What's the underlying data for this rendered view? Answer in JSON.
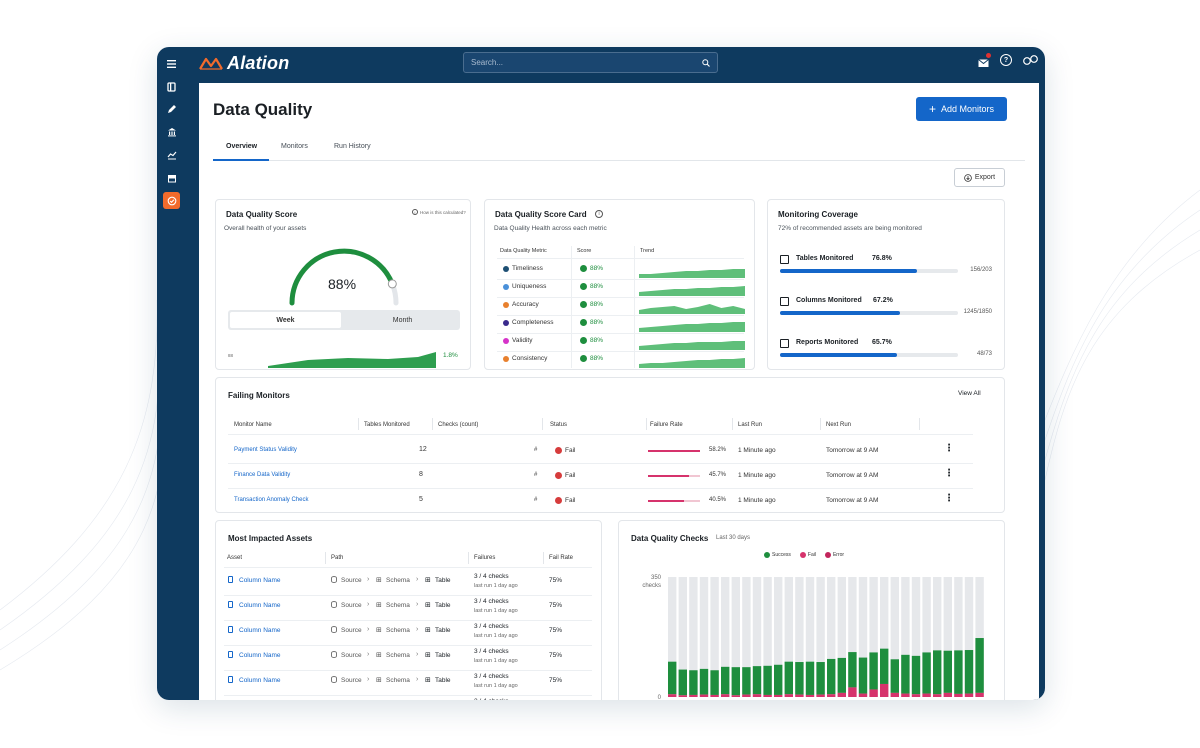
{
  "app": {
    "name": "Alation"
  },
  "search": {
    "placeholder": "Search..."
  },
  "page": {
    "title": "Data Quality",
    "add_button": "Add Monitors",
    "export_button": "Export"
  },
  "tabs": [
    {
      "label": "Overview",
      "active": true
    },
    {
      "label": "Monitors"
    },
    {
      "label": "Run History"
    }
  ],
  "score_card": {
    "title": "Data Quality Score",
    "subtitle": "Overall health of your assets",
    "help": "How is this calculated?",
    "score": "88%",
    "score_value": 0.88,
    "toggle": [
      "Week",
      "Month"
    ],
    "spark_label": "88",
    "delta": "1.8%"
  },
  "metric_card": {
    "title": "Data Quality Score Card",
    "subtitle": "Data Quality Health across each metric",
    "columns": [
      "Data Quality Metric",
      "Score",
      "Trend"
    ],
    "rows": [
      {
        "metric": "Timeliness",
        "score": "88%",
        "color": "#1d4f73"
      },
      {
        "metric": "Uniqueness",
        "score": "88%",
        "color": "#4a90d9"
      },
      {
        "metric": "Accuracy",
        "score": "88%",
        "color": "#e8802e"
      },
      {
        "metric": "Completeness",
        "score": "88%",
        "color": "#3a2a8c"
      },
      {
        "metric": "Validity",
        "score": "88%",
        "color": "#d633c9"
      },
      {
        "metric": "Consistency",
        "score": "88%",
        "color": "#e8802e"
      }
    ]
  },
  "coverage": {
    "title": "Monitoring Coverage",
    "subtitle": "72% of recommended assets are being monitored",
    "items": [
      {
        "label": "Tables Monitored",
        "pct": "76.8%",
        "value": 0.768,
        "count": "156/203",
        "icon": "table-icon"
      },
      {
        "label": "Columns Monitored",
        "pct": "67.2%",
        "value": 0.672,
        "count": "1245/1850",
        "icon": "column-icon"
      },
      {
        "label": "Reports Monitored",
        "pct": "65.7%",
        "value": 0.657,
        "count": "48/73",
        "icon": "report-icon"
      }
    ]
  },
  "failing": {
    "title": "Failing Monitors",
    "view_all": "View All",
    "columns": [
      "Monitor Name",
      "Tables Monitored",
      "Checks (count)",
      "Status",
      "Failure Rate",
      "Last Run",
      "Next Run"
    ],
    "rows": [
      {
        "name": "Payment Status Validity",
        "tables": "12",
        "checks": "#",
        "status": "Fail",
        "rate": "58.2%",
        "rate_value": 0.582,
        "last_run": "1 Minute ago",
        "next_run": "Tomorrow at 9 AM"
      },
      {
        "name": "Finance Data Validity",
        "tables": "8",
        "checks": "#",
        "status": "Fail",
        "rate": "45.7%",
        "rate_value": 0.457,
        "last_run": "1 Minute ago",
        "next_run": "Tomorrow at 9 AM"
      },
      {
        "name": "Transaction Anomaly Check",
        "tables": "5",
        "checks": "#",
        "status": "Fail",
        "rate": "40.5%",
        "rate_value": 0.405,
        "last_run": "1 Minute ago",
        "next_run": "Tomorrow at 9 AM"
      }
    ]
  },
  "impacted": {
    "title": "Most Impacted Assets",
    "columns": [
      "Asset",
      "Path",
      "Failures",
      "Fail Rate"
    ],
    "path": {
      "source": "Source",
      "schema": "Schema",
      "table": "Table"
    },
    "rows": [
      {
        "asset": "Column Name",
        "failures": "3 / 4 checks",
        "last": "last run 1 day ago",
        "rate": "75%"
      },
      {
        "asset": "Column Name",
        "failures": "3 / 4 checks",
        "last": "last run 1 day ago",
        "rate": "75%"
      },
      {
        "asset": "Column Name",
        "failures": "3 / 4 checks",
        "last": "last run 1 day ago",
        "rate": "75%"
      },
      {
        "asset": "Column Name",
        "failures": "3 / 4 checks",
        "last": "last run 1 day ago",
        "rate": "75%"
      },
      {
        "asset": "Column Name",
        "failures": "3 / 4 checks",
        "last": "last run 1 day ago",
        "rate": "75%"
      },
      {
        "asset": "",
        "failures": "3 / 4 checks",
        "last": "",
        "rate": ""
      }
    ]
  },
  "checks": {
    "title": "Data Quality Checks",
    "period": "Last 30 days",
    "legend": [
      "Success",
      "Fail",
      "Error"
    ],
    "colors": {
      "success": "#1e8e3e",
      "fail": "#d6336c",
      "error": "#c2255c",
      "empty": "#e6e8eb"
    }
  },
  "chart_data": {
    "type": "bar",
    "ylabel": "checks",
    "ylim": [
      0,
      350
    ],
    "yticks": [
      "350",
      "0"
    ],
    "series": [
      {
        "name": "Success",
        "values": [
          95,
          75,
          72,
          75,
          72,
          80,
          82,
          80,
          82,
          85,
          88,
          95,
          95,
          97,
          95,
          103,
          102,
          103,
          105,
          108,
          103,
          98,
          113,
          112,
          120,
          128,
          123,
          127,
          127,
          160
        ]
      },
      {
        "name": "Fail",
        "values": [
          8,
          5,
          6,
          7,
          6,
          8,
          5,
          7,
          8,
          6,
          6,
          8,
          7,
          6,
          7,
          8,
          12,
          28,
          10,
          22,
          38,
          12,
          10,
          8,
          10,
          8,
          12,
          9,
          10,
          12
        ]
      }
    ]
  }
}
